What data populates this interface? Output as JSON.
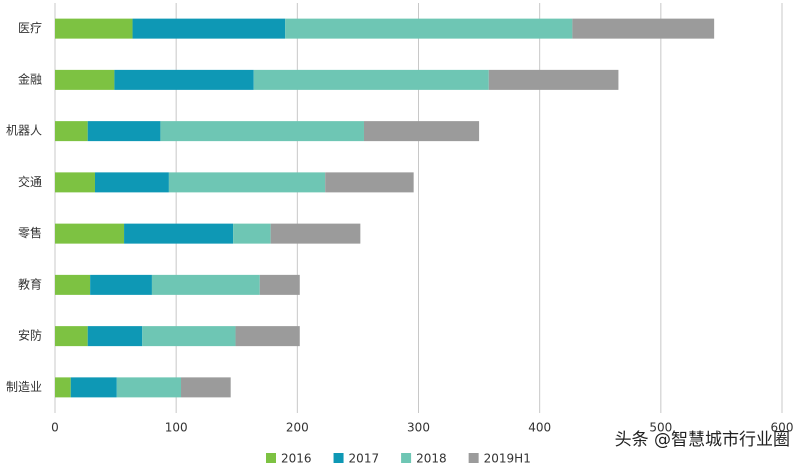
{
  "chart_data": {
    "type": "stacked-barh",
    "categories": [
      "医疗",
      "金融",
      "机器人",
      "交通",
      "零售",
      "教育",
      "安防",
      "制造业"
    ],
    "series": [
      {
        "name": "2016",
        "color": "#7dc242",
        "values": [
          64,
          49,
          27,
          33,
          57,
          29,
          27,
          13
        ]
      },
      {
        "name": "2017",
        "color": "#0e98b5",
        "values": [
          126,
          115,
          60,
          61,
          90,
          51,
          45,
          38
        ]
      },
      {
        "name": "2018",
        "color": "#6ec6b4",
        "values": [
          237,
          194,
          168,
          129,
          31,
          89,
          77,
          53
        ]
      },
      {
        "name": "2019H1",
        "color": "#9b9b9b",
        "values": [
          117,
          107,
          95,
          73,
          74,
          33,
          53,
          41
        ]
      }
    ],
    "xlim": [
      0,
      600
    ],
    "xticks": [
      0,
      100,
      200,
      300,
      400,
      500,
      600
    ],
    "grid": true,
    "legend": "bottom",
    "annotation": "头条 @智慧城市行业圈"
  }
}
